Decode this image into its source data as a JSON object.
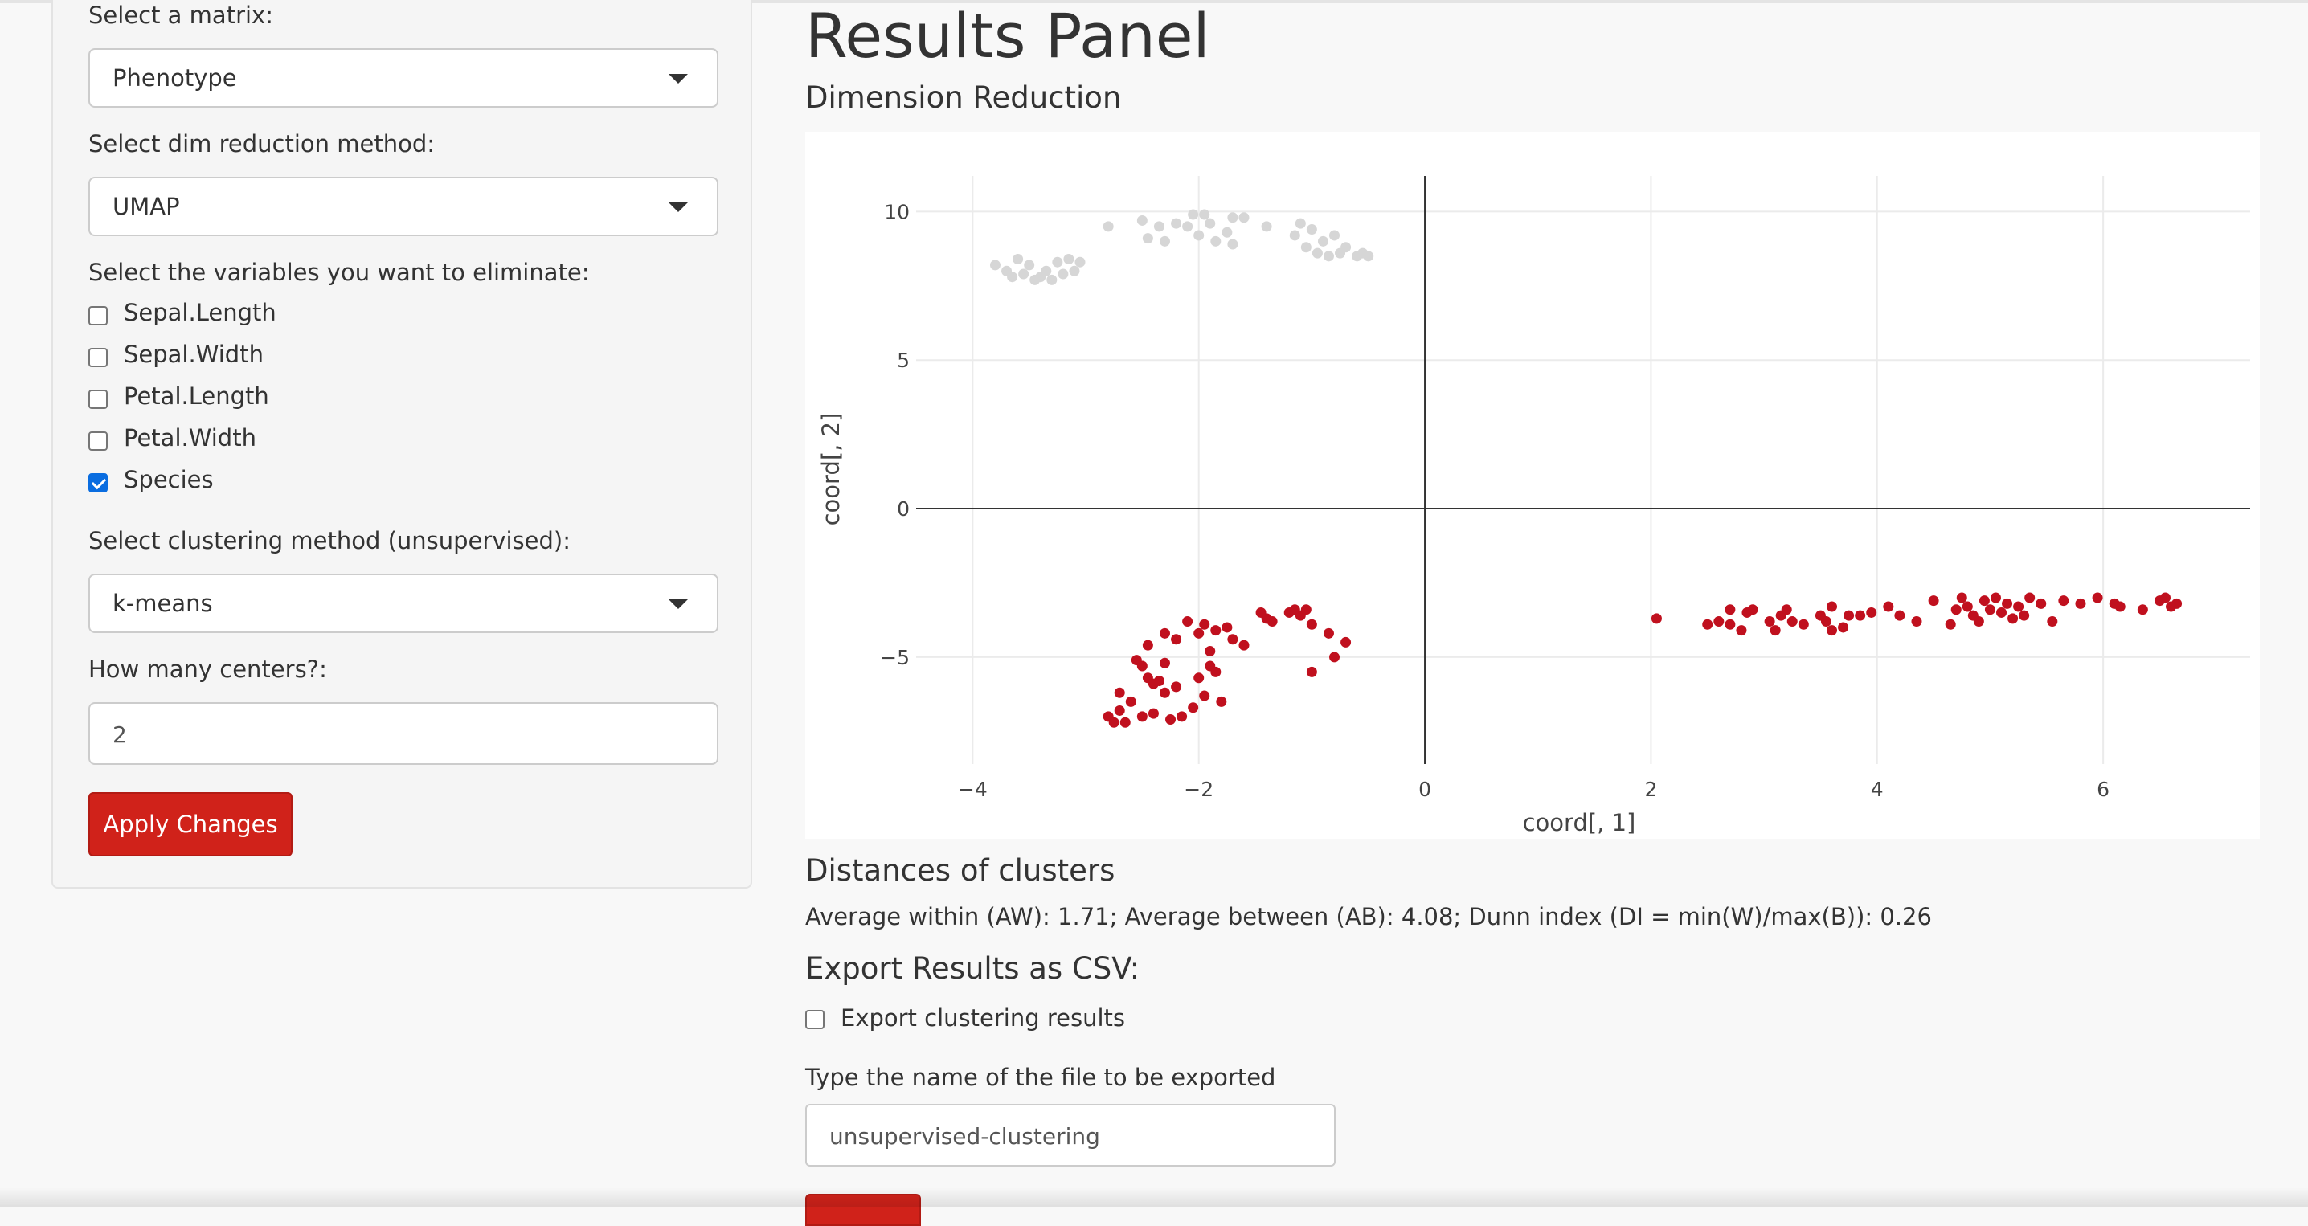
{
  "sidebar": {
    "matrix_label": "Select a matrix:",
    "matrix_value": "Phenotype",
    "dimred_label": "Select dim reduction method:",
    "dimred_value": "UMAP",
    "vars_label": "Select the variables you want to eliminate:",
    "variables": [
      {
        "name": "Sepal.Length",
        "checked": false
      },
      {
        "name": "Sepal.Width",
        "checked": false
      },
      {
        "name": "Petal.Length",
        "checked": false
      },
      {
        "name": "Petal.Width",
        "checked": false
      },
      {
        "name": "Species",
        "checked": true
      }
    ],
    "cluster_label": "Select clustering method (unsupervised):",
    "cluster_value": "k-means",
    "centers_label": "How many centers?:",
    "centers_value": "2",
    "apply_label": "Apply Changes"
  },
  "main": {
    "title": "Results Panel",
    "dimred_heading": "Dimension Reduction",
    "distances_heading": "Distances of clusters",
    "distances_text": "Average within (AW): 1.71; Average between (AB): 4.08; Dunn index (DI = min(W)/max(B)): 0.26",
    "export_heading": "Export Results as CSV:",
    "export_checkbox_label": "Export clustering results",
    "export_checked": false,
    "filename_label": "Type the name of the file to be exported",
    "filename_value": "unsupervised-clustering"
  },
  "colors": {
    "accent": "#d0221a",
    "cluster_red": "#c0101e",
    "cluster_grey": "#d6d6d6",
    "checkbox_blue": "#0a6de0"
  },
  "chart_data": {
    "type": "scatter",
    "title": "",
    "xlabel": "coord[, 1]",
    "ylabel": "coord[, 2]",
    "xlim": [
      -4.5,
      7.3
    ],
    "ylim": [
      -8.6,
      11.2
    ],
    "xticks": [
      -4,
      -2,
      0,
      2,
      4,
      6
    ],
    "xtick_labels": [
      "−4",
      "−2",
      "0",
      "2",
      "4",
      "6"
    ],
    "yticks": [
      10,
      5,
      0,
      -5
    ],
    "ytick_labels": [
      "10",
      "5",
      "0",
      "−5"
    ],
    "grid": true,
    "series": [
      {
        "color": "#d6d6d6",
        "points": [
          [
            -3.8,
            8.2
          ],
          [
            -3.7,
            8.0
          ],
          [
            -3.65,
            7.8
          ],
          [
            -3.6,
            8.4
          ],
          [
            -3.55,
            7.9
          ],
          [
            -3.5,
            8.2
          ],
          [
            -3.45,
            7.7
          ],
          [
            -3.4,
            7.8
          ],
          [
            -3.35,
            8.0
          ],
          [
            -3.3,
            7.7
          ],
          [
            -3.25,
            8.3
          ],
          [
            -3.2,
            7.9
          ],
          [
            -3.15,
            8.4
          ],
          [
            -3.1,
            8.0
          ],
          [
            -3.05,
            8.3
          ],
          [
            -2.8,
            9.5
          ],
          [
            -2.5,
            9.7
          ],
          [
            -2.45,
            9.1
          ],
          [
            -2.35,
            9.5
          ],
          [
            -2.3,
            9.0
          ],
          [
            -2.2,
            9.6
          ],
          [
            -2.1,
            9.5
          ],
          [
            -2.05,
            9.9
          ],
          [
            -2.0,
            9.2
          ],
          [
            -1.95,
            9.9
          ],
          [
            -1.9,
            9.6
          ],
          [
            -1.85,
            9.0
          ],
          [
            -1.75,
            9.3
          ],
          [
            -1.7,
            8.9
          ],
          [
            -1.7,
            9.8
          ],
          [
            -1.6,
            9.8
          ],
          [
            -1.4,
            9.5
          ],
          [
            -1.15,
            9.2
          ],
          [
            -1.1,
            9.6
          ],
          [
            -1.05,
            8.8
          ],
          [
            -1.0,
            9.4
          ],
          [
            -0.95,
            8.6
          ],
          [
            -0.9,
            9.0
          ],
          [
            -0.85,
            8.5
          ],
          [
            -0.8,
            9.2
          ],
          [
            -0.75,
            8.6
          ],
          [
            -0.7,
            8.8
          ],
          [
            -0.6,
            8.5
          ],
          [
            -0.55,
            8.6
          ],
          [
            -0.5,
            8.5
          ]
        ]
      },
      {
        "color": "#c0101e",
        "points": [
          [
            -2.8,
            -7.0
          ],
          [
            -2.75,
            -7.2
          ],
          [
            -2.7,
            -6.8
          ],
          [
            -2.7,
            -6.2
          ],
          [
            -2.65,
            -7.2
          ],
          [
            -2.6,
            -6.5
          ],
          [
            -2.55,
            -5.1
          ],
          [
            -2.5,
            -7.0
          ],
          [
            -2.5,
            -5.3
          ],
          [
            -2.45,
            -4.6
          ],
          [
            -2.45,
            -5.7
          ],
          [
            -2.4,
            -5.9
          ],
          [
            -2.4,
            -6.9
          ],
          [
            -2.35,
            -5.8
          ],
          [
            -2.3,
            -6.2
          ],
          [
            -2.3,
            -4.2
          ],
          [
            -2.3,
            -5.2
          ],
          [
            -2.25,
            -7.1
          ],
          [
            -2.2,
            -6.0
          ],
          [
            -2.2,
            -4.4
          ],
          [
            -2.15,
            -7.0
          ],
          [
            -2.1,
            -3.8
          ],
          [
            -2.05,
            -6.7
          ],
          [
            -2.0,
            -4.2
          ],
          [
            -2.0,
            -5.7
          ],
          [
            -1.95,
            -3.9
          ],
          [
            -1.95,
            -6.3
          ],
          [
            -1.9,
            -5.3
          ],
          [
            -1.9,
            -4.8
          ],
          [
            -1.85,
            -5.5
          ],
          [
            -1.85,
            -4.1
          ],
          [
            -1.8,
            -6.5
          ],
          [
            -1.75,
            -4.0
          ],
          [
            -1.7,
            -4.4
          ],
          [
            -1.6,
            -4.6
          ],
          [
            -1.45,
            -3.5
          ],
          [
            -1.4,
            -3.7
          ],
          [
            -1.35,
            -3.8
          ],
          [
            -1.2,
            -3.5
          ],
          [
            -1.15,
            -3.4
          ],
          [
            -1.1,
            -3.6
          ],
          [
            -1.05,
            -3.4
          ],
          [
            -1.0,
            -3.9
          ],
          [
            -1.0,
            -5.5
          ],
          [
            -0.85,
            -4.2
          ],
          [
            -0.8,
            -5.0
          ],
          [
            -0.7,
            -4.5
          ],
          [
            2.05,
            -3.7
          ],
          [
            2.5,
            -3.9
          ],
          [
            2.6,
            -3.8
          ],
          [
            2.7,
            -3.4
          ],
          [
            2.7,
            -3.9
          ],
          [
            2.8,
            -4.1
          ],
          [
            2.85,
            -3.5
          ],
          [
            2.9,
            -3.4
          ],
          [
            3.05,
            -3.8
          ],
          [
            3.1,
            -4.1
          ],
          [
            3.15,
            -3.6
          ],
          [
            3.2,
            -3.4
          ],
          [
            3.25,
            -3.8
          ],
          [
            3.35,
            -3.9
          ],
          [
            3.5,
            -3.6
          ],
          [
            3.55,
            -3.8
          ],
          [
            3.6,
            -3.3
          ],
          [
            3.6,
            -4.1
          ],
          [
            3.7,
            -4.0
          ],
          [
            3.75,
            -3.6
          ],
          [
            3.85,
            -3.6
          ],
          [
            3.95,
            -3.5
          ],
          [
            4.1,
            -3.3
          ],
          [
            4.2,
            -3.6
          ],
          [
            4.35,
            -3.8
          ],
          [
            4.5,
            -3.1
          ],
          [
            4.65,
            -3.9
          ],
          [
            4.7,
            -3.4
          ],
          [
            4.75,
            -3.0
          ],
          [
            4.8,
            -3.3
          ],
          [
            4.85,
            -3.6
          ],
          [
            4.9,
            -3.8
          ],
          [
            4.95,
            -3.1
          ],
          [
            5.0,
            -3.4
          ],
          [
            5.05,
            -3.0
          ],
          [
            5.1,
            -3.5
          ],
          [
            5.15,
            -3.2
          ],
          [
            5.2,
            -3.7
          ],
          [
            5.25,
            -3.3
          ],
          [
            5.3,
            -3.6
          ],
          [
            5.35,
            -3.0
          ],
          [
            5.45,
            -3.2
          ],
          [
            5.55,
            -3.8
          ],
          [
            5.65,
            -3.1
          ],
          [
            5.8,
            -3.2
          ],
          [
            5.95,
            -3.0
          ],
          [
            6.1,
            -3.2
          ],
          [
            6.15,
            -3.3
          ],
          [
            6.35,
            -3.4
          ],
          [
            6.5,
            -3.1
          ],
          [
            6.55,
            -3.0
          ],
          [
            6.6,
            -3.3
          ],
          [
            6.65,
            -3.2
          ]
        ]
      }
    ]
  }
}
